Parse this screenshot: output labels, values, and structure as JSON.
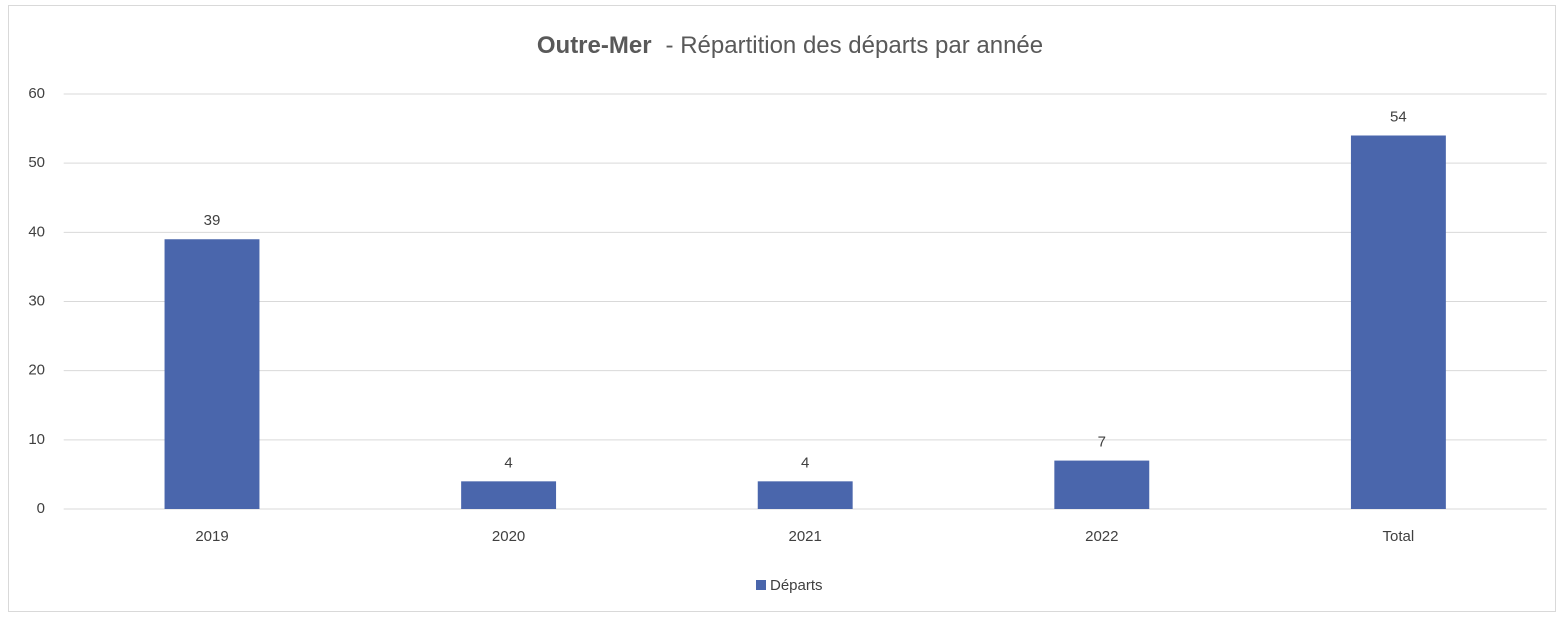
{
  "chart_data": {
    "type": "bar",
    "title": [
      "Outre-Mer",
      "- Répartition des départs par année"
    ],
    "categories": [
      "2019",
      "2020",
      "2021",
      "2022",
      "Total"
    ],
    "series": [
      {
        "name": "Départs",
        "color": "#4a66ac",
        "values": [
          39,
          4,
          4,
          7,
          54
        ]
      }
    ],
    "ylim": [
      0,
      60
    ],
    "yticks": [
      0,
      10,
      20,
      30,
      40,
      50,
      60
    ],
    "grid": true,
    "legend": "bottom"
  }
}
